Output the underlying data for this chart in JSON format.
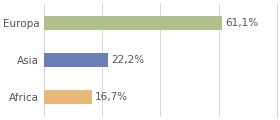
{
  "categories": [
    "Europa",
    "Asia",
    "Africa"
  ],
  "values": [
    61.1,
    22.2,
    16.7
  ],
  "labels": [
    "61,1%",
    "22,2%",
    "16,7%"
  ],
  "bar_colors": [
    "#afc08a",
    "#6b7fb5",
    "#e8b87a"
  ],
  "background_color": "#ffffff",
  "xlim": [
    0,
    80
  ],
  "bar_height": 0.38,
  "label_fontsize": 7.5,
  "tick_fontsize": 7.5,
  "grid_color": "#d0d0d0",
  "text_color": "#555555"
}
